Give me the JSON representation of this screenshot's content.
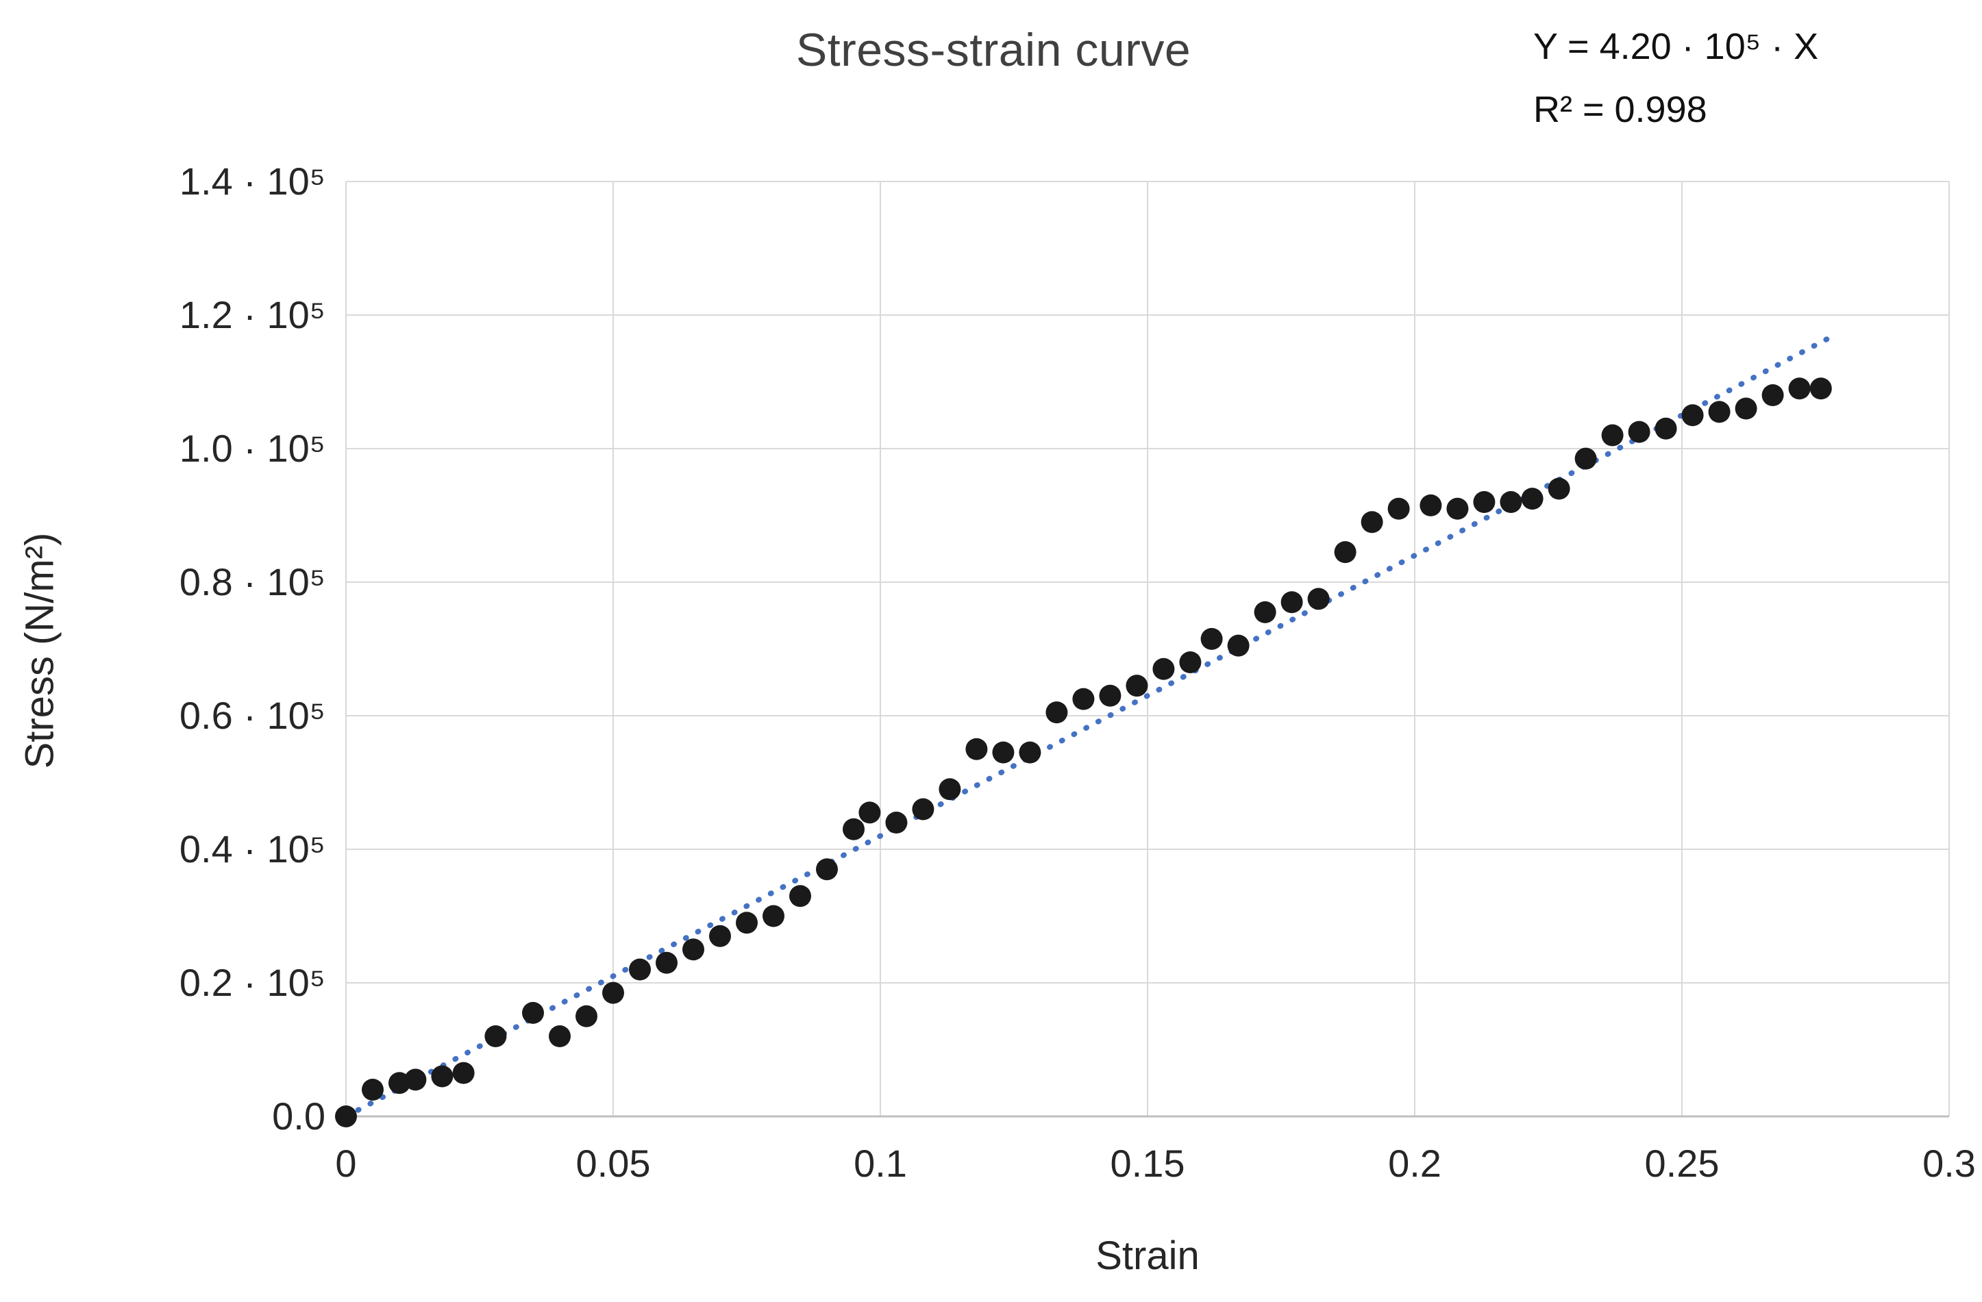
{
  "chart_data": {
    "type": "scatter",
    "title": "Stress-strain curve",
    "xlabel": "Strain",
    "ylabel": "Stress (N/m²)",
    "y_unit": "10⁵ N/m²",
    "xlim": [
      0,
      0.3
    ],
    "ylim_e5": [
      0,
      1.4
    ],
    "grid": true,
    "x_ticks": [
      {
        "value": 0,
        "label": "0"
      },
      {
        "value": 0.05,
        "label": "0.05"
      },
      {
        "value": 0.1,
        "label": "0.1"
      },
      {
        "value": 0.15,
        "label": "0.15"
      },
      {
        "value": 0.2,
        "label": "0.2"
      },
      {
        "value": 0.25,
        "label": "0.25"
      },
      {
        "value": 0.3,
        "label": "0.3"
      }
    ],
    "y_ticks": [
      {
        "value": 0.0,
        "label": "0.0"
      },
      {
        "value": 0.2,
        "label": "0.2 · 10⁵"
      },
      {
        "value": 0.4,
        "label": "0.4 · 10⁵"
      },
      {
        "value": 0.6,
        "label": "0.6 · 10⁵"
      },
      {
        "value": 0.8,
        "label": "0.8 · 10⁵"
      },
      {
        "value": 1.0,
        "label": "1.0 · 10⁵"
      },
      {
        "value": 1.2,
        "label": "1.2 · 10⁵"
      },
      {
        "value": 1.4,
        "label": "1.4 · 10⁵"
      }
    ],
    "points_y_in_1e5": [
      [
        0.0,
        0.0
      ],
      [
        0.005,
        0.04
      ],
      [
        0.01,
        0.05
      ],
      [
        0.013,
        0.055
      ],
      [
        0.018,
        0.06
      ],
      [
        0.022,
        0.065
      ],
      [
        0.028,
        0.12
      ],
      [
        0.035,
        0.155
      ],
      [
        0.04,
        0.12
      ],
      [
        0.045,
        0.15
      ],
      [
        0.05,
        0.185
      ],
      [
        0.055,
        0.22
      ],
      [
        0.06,
        0.23
      ],
      [
        0.065,
        0.25
      ],
      [
        0.07,
        0.27
      ],
      [
        0.075,
        0.29
      ],
      [
        0.08,
        0.3
      ],
      [
        0.085,
        0.33
      ],
      [
        0.09,
        0.37
      ],
      [
        0.095,
        0.43
      ],
      [
        0.098,
        0.455
      ],
      [
        0.103,
        0.44
      ],
      [
        0.108,
        0.46
      ],
      [
        0.113,
        0.49
      ],
      [
        0.118,
        0.55
      ],
      [
        0.123,
        0.545
      ],
      [
        0.128,
        0.545
      ],
      [
        0.133,
        0.605
      ],
      [
        0.138,
        0.625
      ],
      [
        0.143,
        0.63
      ],
      [
        0.148,
        0.645
      ],
      [
        0.153,
        0.67
      ],
      [
        0.158,
        0.68
      ],
      [
        0.162,
        0.715
      ],
      [
        0.167,
        0.705
      ],
      [
        0.172,
        0.755
      ],
      [
        0.177,
        0.77
      ],
      [
        0.182,
        0.775
      ],
      [
        0.187,
        0.845
      ],
      [
        0.192,
        0.89
      ],
      [
        0.197,
        0.91
      ],
      [
        0.203,
        0.915
      ],
      [
        0.208,
        0.91
      ],
      [
        0.213,
        0.92
      ],
      [
        0.218,
        0.92
      ],
      [
        0.222,
        0.925
      ],
      [
        0.227,
        0.94
      ],
      [
        0.232,
        0.985
      ],
      [
        0.237,
        1.02
      ],
      [
        0.242,
        1.025
      ],
      [
        0.247,
        1.03
      ],
      [
        0.252,
        1.05
      ],
      [
        0.257,
        1.055
      ],
      [
        0.262,
        1.06
      ],
      [
        0.267,
        1.08
      ],
      [
        0.272,
        1.09
      ],
      [
        0.276,
        1.09
      ]
    ],
    "trendline": {
      "equation": "Y = 4.20 · 10⁵ · X",
      "r_squared": "R² = 0.998",
      "slope_e5_per_strain": 4.2,
      "intercept": 0,
      "x_range": [
        0,
        0.278
      ],
      "style": "dotted"
    },
    "colors": {
      "point": "#1a1a1a",
      "trendline": "#4472C4",
      "grid": "#d9d9d9",
      "axis": "#bfbfbf",
      "tick_text": "#262626",
      "title_text": "#404040"
    },
    "legend": "none"
  }
}
